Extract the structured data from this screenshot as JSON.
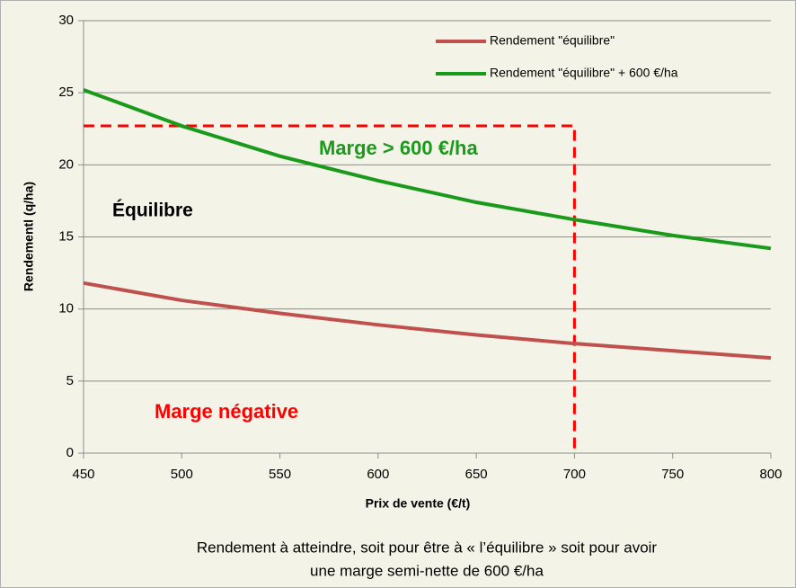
{
  "chart_data": {
    "type": "line",
    "x": [
      450,
      500,
      550,
      600,
      650,
      700,
      750,
      800
    ],
    "series": [
      {
        "name": "Rendement \"équilibre\"",
        "color": "#c0504d",
        "values": [
          11.8,
          10.6,
          9.7,
          8.9,
          8.2,
          7.6,
          7.1,
          6.6
        ]
      },
      {
        "name": "Rendement \"équilibre\" +  600 €/ha",
        "color": "#1a9a1a",
        "values": [
          25.2,
          22.7,
          20.6,
          18.9,
          17.4,
          16.2,
          15.1,
          14.2
        ]
      }
    ],
    "xlim": [
      450,
      800
    ],
    "xticks": [
      450,
      500,
      550,
      600,
      650,
      700,
      750,
      800
    ],
    "ylim": [
      0,
      30
    ],
    "yticks": [
      0,
      5,
      10,
      15,
      20,
      25,
      30
    ],
    "grid": true,
    "legend": "top-right",
    "xlabel": "Prix de vente (€/t)",
    "ylabel": "Rendementl (q/ha)",
    "guide": {
      "x": 700,
      "y": 22.7,
      "color": "#ff0000"
    },
    "annotations": [
      {
        "text": "Équilibre",
        "color": "#000000"
      },
      {
        "text": "Marge > 600 €/ha",
        "color": "#1a9a1a"
      },
      {
        "text": "Marge négative",
        "color": "#ff0000"
      }
    ],
    "caption": [
      "Rendement à atteindre, soit  pour être à « l’équilibre » soit pour avoir",
      "une marge semi-nette de 600 €/ha"
    ]
  }
}
